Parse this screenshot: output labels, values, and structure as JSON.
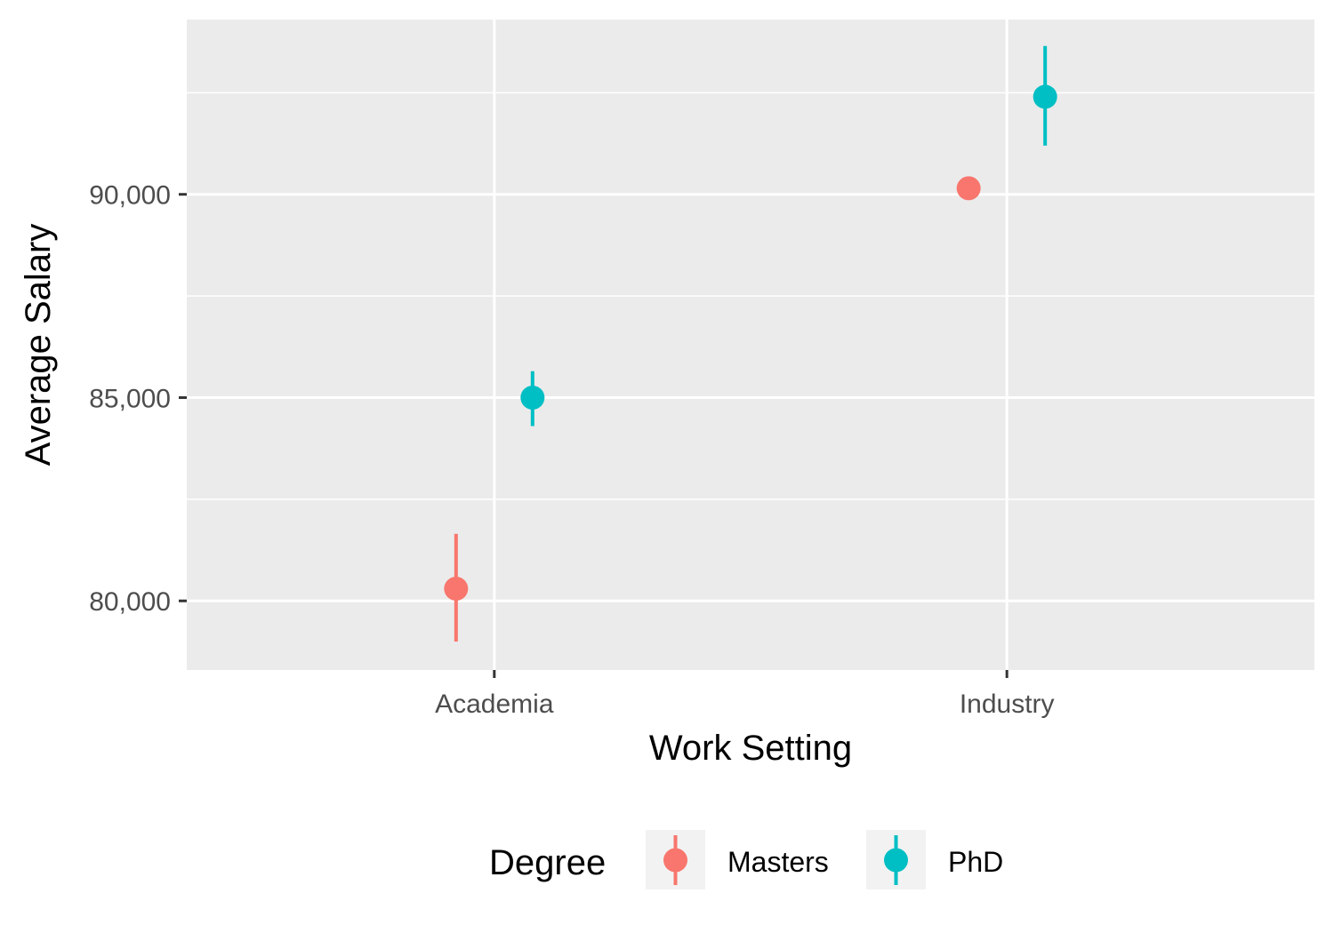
{
  "chart_data": {
    "type": "scatter",
    "title": "",
    "xlabel": "Work Setting",
    "ylabel": "Average Salary",
    "categories": [
      "Academia",
      "Industry"
    ],
    "ylim": [
      78300,
      94300
    ],
    "yticks": [
      80000,
      85000,
      90000
    ],
    "ytick_labels": [
      "80,000",
      "85,000",
      "90,000"
    ],
    "grid": true,
    "legend": {
      "title": "Degree",
      "position": "bottom"
    },
    "series": [
      {
        "name": "Masters",
        "color": "#F8766D",
        "values": [
          80300,
          90150
        ],
        "error_low": [
          79000,
          null
        ],
        "error_high": [
          81650,
          null
        ]
      },
      {
        "name": "PhD",
        "color": "#00BFC4",
        "values": [
          85000,
          92400
        ],
        "error_low": [
          84300,
          91200
        ],
        "error_high": [
          85650,
          93650
        ]
      }
    ]
  }
}
